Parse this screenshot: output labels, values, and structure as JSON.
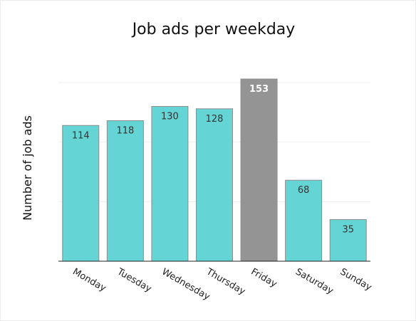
{
  "chart_data": {
    "type": "bar",
    "title": "Job ads per weekday",
    "xlabel": "",
    "ylabel": "Number of job ads",
    "categories": [
      "Monday",
      "Tuesday",
      "Wednesday",
      "Thursday",
      "Friday",
      "Saturday",
      "Sunday"
    ],
    "values": [
      114,
      118,
      130,
      128,
      153,
      68,
      35
    ],
    "ylim": [
      0,
      160
    ],
    "grid": true,
    "highlight": {
      "category": "Friday",
      "color": "#949494"
    },
    "colors": {
      "bar": "#64d4d4",
      "bar_outline": "#8c8c8c",
      "label_default": "#333333",
      "label_highlight": "#ffffff"
    }
  }
}
